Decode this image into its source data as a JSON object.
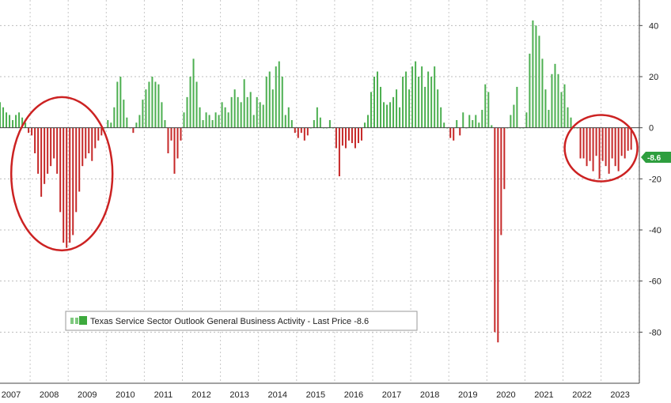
{
  "chart_data": {
    "type": "bar",
    "title": "",
    "xlabel": "",
    "ylabel": "",
    "ylim": [
      -100,
      50
    ],
    "yticks": [
      40,
      20,
      0,
      -20,
      -40,
      -60,
      -80
    ],
    "grid": true,
    "legend_placement": "bottom-left",
    "last_price_label": "-8.6",
    "positive_color": "#4caf50",
    "negative_color": "#c62828",
    "annotation_color": "#cc2222",
    "x_tick_labels": [
      "2007",
      "2008",
      "2009",
      "2010",
      "2011",
      "2012",
      "2013",
      "2014",
      "2015",
      "2016",
      "2017",
      "2018",
      "2019",
      "2020",
      "2021",
      "2022",
      "2023"
    ],
    "series": [
      {
        "name": "Texas Service Sector Outlook General Business Activity - Last Price -8.6",
        "start": "2007-01",
        "values": [
          15,
          12,
          10,
          8,
          6,
          5,
          3,
          5,
          6,
          4,
          2,
          -2,
          -3,
          -10,
          -18,
          -27,
          -22,
          -18,
          -15,
          -12,
          -18,
          -33,
          -45,
          -47,
          -45,
          -42,
          -33,
          -25,
          -15,
          -12,
          -10,
          -13,
          -8,
          -5,
          -3,
          0,
          3,
          2,
          8,
          18,
          20,
          11,
          4,
          0,
          -2,
          2,
          5,
          11,
          15,
          18,
          20,
          18,
          17,
          10,
          3,
          -10,
          -5,
          -18,
          -12,
          -5,
          6,
          12,
          20,
          27,
          18,
          8,
          3,
          6,
          5,
          3,
          6,
          5,
          10,
          8,
          6,
          12,
          15,
          12,
          10,
          19,
          12,
          14,
          5,
          12,
          10,
          9,
          20,
          22,
          15,
          24,
          26,
          20,
          5,
          8,
          3,
          -2,
          -4,
          -2,
          -5,
          -3,
          0,
          3,
          8,
          4,
          0,
          0,
          3,
          0,
          -8,
          -19,
          -7,
          -8,
          -5,
          -6,
          -8,
          -6,
          -5,
          2,
          5,
          14,
          20,
          22,
          16,
          10,
          9,
          10,
          12,
          15,
          8,
          20,
          22,
          15,
          24,
          26,
          20,
          24,
          16,
          22,
          20,
          24,
          15,
          8,
          2,
          0,
          -4,
          -5,
          3,
          -3,
          6,
          0,
          5,
          3,
          5,
          2,
          7,
          17,
          14,
          1,
          -80,
          -84,
          -42,
          -24,
          0,
          5,
          9,
          16,
          0,
          0,
          6,
          29,
          42,
          40,
          36,
          27,
          15,
          7,
          21,
          25,
          21,
          14,
          17,
          8,
          4,
          0,
          0,
          -12,
          -12,
          -15,
          -13,
          -17,
          -11,
          -20,
          -13,
          -15,
          -18,
          -12,
          -15,
          -17,
          -11,
          -12,
          -9,
          -8.6
        ]
      }
    ]
  },
  "legend": {
    "label": "Texas Service Sector Outlook General Business Activity - Last Price -8.6"
  }
}
